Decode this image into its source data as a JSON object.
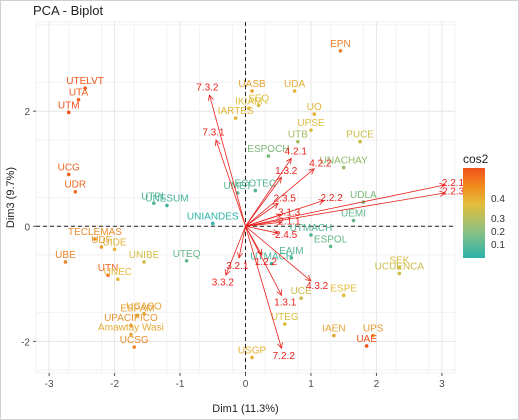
{
  "chart_data": {
    "type": "scatter",
    "title": "PCA - Biplot",
    "xlabel": "Dim1 (11.3%)",
    "ylabel": "Dim3 (9.7%)",
    "xlim": [
      -3.2,
      3.2
    ],
    "ylim": [
      -2.55,
      3.55
    ],
    "x_ticks": [
      -3,
      -2,
      -1,
      0,
      1,
      2,
      3
    ],
    "y_ticks": [
      -2,
      0,
      2
    ],
    "grid": true,
    "legend": {
      "title": "cos2",
      "ticks": [
        "0.4",
        "0.3",
        "0.2",
        "0.1"
      ],
      "position": "right"
    },
    "colors": {
      "low": "#2bb3a9",
      "mid": "#e3bd3a",
      "high": "#f1511b",
      "arrow": "#e8211c"
    },
    "individuals": [
      {
        "label": "EPN",
        "x": 1.45,
        "y": 3.05,
        "cos2": 0.38
      },
      {
        "label": "UTELVT",
        "x": -2.45,
        "y": 2.4,
        "cos2": 0.44
      },
      {
        "label": "UTA",
        "x": -2.55,
        "y": 2.2,
        "cos2": 0.43
      },
      {
        "label": "UTM",
        "x": -2.7,
        "y": 1.98,
        "cos2": 0.45
      },
      {
        "label": "UASB",
        "x": 0.1,
        "y": 2.35,
        "cos2": 0.32
      },
      {
        "label": "UDA",
        "x": 0.75,
        "y": 2.35,
        "cos2": 0.3
      },
      {
        "label": "IKIAM",
        "x": 0.05,
        "y": 2.05,
        "cos2": 0.28
      },
      {
        "label": "SEQ",
        "x": 0.2,
        "y": 2.1,
        "cos2": 0.27
      },
      {
        "label": "IARTES",
        "x": -0.15,
        "y": 1.88,
        "cos2": 0.29
      },
      {
        "label": "UO",
        "x": 1.05,
        "y": 1.95,
        "cos2": 0.3
      },
      {
        "label": "UPSE",
        "x": 1.0,
        "y": 1.67,
        "cos2": 0.27
      },
      {
        "label": "PUCE",
        "x": 1.75,
        "y": 1.47,
        "cos2": 0.25
      },
      {
        "label": "UTB",
        "x": 0.8,
        "y": 1.47,
        "cos2": 0.2
      },
      {
        "label": "ESPOCH",
        "x": 0.35,
        "y": 1.22,
        "cos2": 0.15
      },
      {
        "label": "UNACHAY",
        "x": 1.5,
        "y": 1.02,
        "cos2": 0.18
      },
      {
        "label": "UCG",
        "x": -2.7,
        "y": 0.9,
        "cos2": 0.42
      },
      {
        "label": "UDR",
        "x": -2.6,
        "y": 0.6,
        "cos2": 0.41
      },
      {
        "label": "UTPL",
        "x": -1.4,
        "y": 0.4,
        "cos2": 0.1
      },
      {
        "label": "UNESUM",
        "x": -1.2,
        "y": 0.36,
        "cos2": 0.08
      },
      {
        "label": "UMET",
        "x": -0.12,
        "y": 0.58,
        "cos2": 0.1
      },
      {
        "label": "ECOTEC",
        "x": 0.15,
        "y": 0.62,
        "cos2": 0.1
      },
      {
        "label": "UNIANDES",
        "x": -0.5,
        "y": 0.05,
        "cos2": 0.05
      },
      {
        "label": "UDLA",
        "x": 1.8,
        "y": 0.42,
        "cos2": 0.15
      },
      {
        "label": "UEMI",
        "x": 1.65,
        "y": 0.1,
        "cos2": 0.12
      },
      {
        "label": "UTMACH",
        "x": 1.0,
        "y": -0.15,
        "cos2": 0.1
      },
      {
        "label": "ESPOL",
        "x": 1.3,
        "y": -0.35,
        "cos2": 0.12
      },
      {
        "label": "EAIM",
        "x": 0.7,
        "y": -0.55,
        "cos2": 0.1
      },
      {
        "label": "UTMACH",
        "x": 0.4,
        "y": -0.65,
        "cos2": 0.08
      },
      {
        "label": "TECLEMAS",
        "x": -2.3,
        "y": -0.22,
        "cos2": 0.36
      },
      {
        "label": "UDF",
        "x": -2.2,
        "y": -0.36,
        "cos2": 0.33
      },
      {
        "label": "UIDE",
        "x": -2.0,
        "y": -0.4,
        "cos2": 0.3
      },
      {
        "label": "UBE",
        "x": -2.75,
        "y": -0.62,
        "cos2": 0.37
      },
      {
        "label": "UNIBE",
        "x": -1.55,
        "y": -0.62,
        "cos2": 0.26
      },
      {
        "label": "UTEQ",
        "x": -0.9,
        "y": -0.6,
        "cos2": 0.12
      },
      {
        "label": "UTN",
        "x": -2.1,
        "y": -0.85,
        "cos2": 0.42
      },
      {
        "label": "UNEC",
        "x": -1.95,
        "y": -0.92,
        "cos2": 0.29
      },
      {
        "label": "UCUENCA",
        "x": 2.35,
        "y": -0.82,
        "cos2": 0.25
      },
      {
        "label": "SEK",
        "x": 2.35,
        "y": -0.72,
        "cos2": 0.26
      },
      {
        "label": "ESPE",
        "x": 1.5,
        "y": -1.2,
        "cos2": 0.28
      },
      {
        "label": "UCE",
        "x": 0.85,
        "y": -1.25,
        "cos2": 0.25
      },
      {
        "label": "UTEG",
        "x": 0.6,
        "y": -1.7,
        "cos2": 0.27
      },
      {
        "label": "IAEN",
        "x": 1.35,
        "y": -1.9,
        "cos2": 0.32
      },
      {
        "label": "UPS",
        "x": 1.95,
        "y": -1.9,
        "cos2": 0.34
      },
      {
        "label": "UAE",
        "x": 1.85,
        "y": -2.08,
        "cos2": 0.45
      },
      {
        "label": "ESPAM",
        "x": -1.65,
        "y": -1.55,
        "cos2": 0.33
      },
      {
        "label": "UCASO",
        "x": -1.55,
        "y": -1.52,
        "cos2": 0.32
      },
      {
        "label": "UPACIFICO",
        "x": -1.75,
        "y": -1.72,
        "cos2": 0.34
      },
      {
        "label": "Amawtay Wasi",
        "x": -1.75,
        "y": -1.88,
        "cos2": 0.31
      },
      {
        "label": "UCSG",
        "x": -1.7,
        "y": -2.1,
        "cos2": 0.36
      },
      {
        "label": "USGP",
        "x": 0.1,
        "y": -2.28,
        "cos2": 0.3
      }
    ],
    "variables": [
      {
        "label": "7.3.2",
        "x": -0.55,
        "y": 2.28
      },
      {
        "label": "7.3.1",
        "x": -0.45,
        "y": 1.5
      },
      {
        "label": "4.2.1",
        "x": 0.7,
        "y": 1.18
      },
      {
        "label": "4.2.2",
        "x": 1.05,
        "y": 1.0
      },
      {
        "label": "1.3.2",
        "x": 0.55,
        "y": 0.85
      },
      {
        "label": "2.2.1",
        "x": 3.05,
        "y": 0.72
      },
      {
        "label": "2.2.3",
        "x": 3.05,
        "y": 0.58
      },
      {
        "label": "2.2.2",
        "x": 1.2,
        "y": 0.45
      },
      {
        "label": "2.3.5",
        "x": 0.5,
        "y": 0.4
      },
      {
        "label": "3.1.3",
        "x": 0.55,
        "y": 0.2
      },
      {
        "label": "2.1.1",
        "x": 0.55,
        "y": 0.07
      },
      {
        "label": "2.4.5",
        "x": 0.5,
        "y": -0.12
      },
      {
        "label": "3.3.2",
        "x": -0.3,
        "y": -0.85
      },
      {
        "label": "4.3.2",
        "x": 1.0,
        "y": -0.95
      },
      {
        "label": "1.3.1",
        "x": 0.55,
        "y": -1.2
      },
      {
        "label": "7.2.2",
        "x": 0.55,
        "y": -2.12
      },
      {
        "label": "3.2.1",
        "x": -0.1,
        "y": -0.55
      },
      {
        "label": "1.2.2",
        "x": 0.25,
        "y": -0.5
      }
    ]
  }
}
